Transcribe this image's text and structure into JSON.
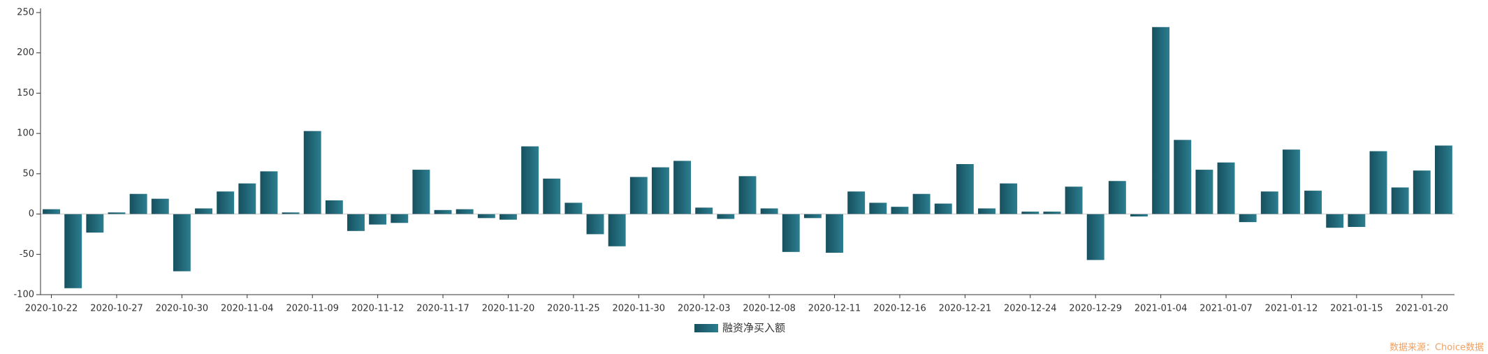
{
  "chart_data": {
    "type": "bar",
    "categories": [
      "2020-10-22",
      null,
      null,
      "2020-10-27",
      null,
      null,
      "2020-10-30",
      null,
      null,
      "2020-11-04",
      null,
      null,
      "2020-11-09",
      null,
      null,
      "2020-11-12",
      null,
      null,
      "2020-11-17",
      null,
      null,
      "2020-11-20",
      null,
      null,
      "2020-11-25",
      null,
      null,
      "2020-11-30",
      null,
      null,
      "2020-12-03",
      null,
      null,
      "2020-12-08",
      null,
      null,
      "2020-12-11",
      null,
      null,
      "2020-12-16",
      null,
      null,
      "2020-12-21",
      null,
      null,
      "2020-12-24",
      null,
      null,
      "2020-12-29",
      null,
      null,
      "2021-01-04",
      null,
      null,
      "2021-01-07",
      null,
      null,
      "2021-01-12",
      null,
      null,
      "2021-01-15",
      null,
      null,
      "2021-01-20",
      null
    ],
    "series": [
      {
        "name": "融资净买入额",
        "color": "#2b7e90",
        "values": [
          6,
          -92,
          -23,
          2,
          25,
          19,
          -71,
          7,
          28,
          38,
          53,
          2,
          103,
          17,
          -21,
          -13,
          -11,
          55,
          5,
          6,
          -5,
          -7,
          84,
          44,
          14,
          -25,
          -40,
          46,
          58,
          66,
          8,
          -6,
          47,
          7,
          -47,
          -5,
          -48,
          28,
          14,
          9,
          25,
          13,
          62,
          7,
          38,
          3,
          3,
          34,
          -57,
          41,
          -3,
          232,
          92,
          55,
          64,
          -10,
          28,
          80,
          29,
          -17,
          -16,
          78,
          33,
          54,
          85
        ]
      }
    ],
    "ylim": [
      -100,
      250
    ],
    "yticks": [
      -100,
      -50,
      0,
      50,
      100,
      150,
      200,
      250
    ],
    "legend": "bottom",
    "source": "数据来源：Choice数据"
  }
}
